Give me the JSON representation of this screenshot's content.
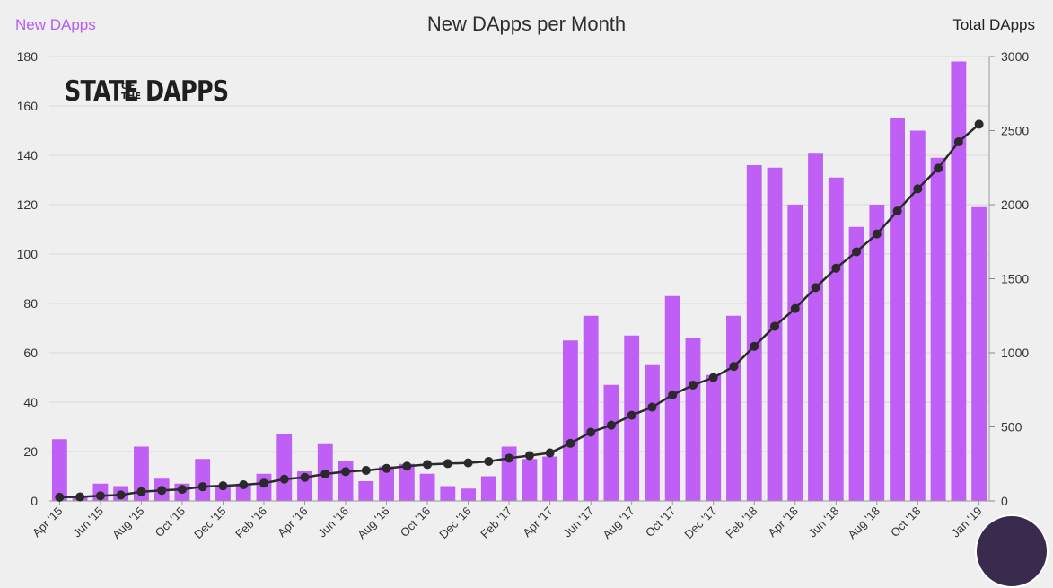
{
  "header": {
    "left_label": "New DApps",
    "title": "New DApps per Month",
    "right_label": "Total DApps"
  },
  "logo": {
    "text": "STATE OF THE DAPPS"
  },
  "colors": {
    "bar": "#bf5ff5",
    "line": "#2a2a2a",
    "left_label": "#b75cf2",
    "grid": "#d9d9d9"
  },
  "chart_data": {
    "type": "bar",
    "title": "New DApps per Month",
    "categories": [
      "Apr '15",
      "May '15",
      "Jun '15",
      "Jul '15",
      "Aug '15",
      "Sep '15",
      "Oct '15",
      "Nov '15",
      "Dec '15",
      "Jan '16",
      "Feb '16",
      "Mar '16",
      "Apr '16",
      "May '16",
      "Jun '16",
      "Jul '16",
      "Aug '16",
      "Sep '16",
      "Oct '16",
      "Nov '16",
      "Dec '16",
      "Jan '17",
      "Feb '17",
      "Mar '17",
      "Apr '17",
      "May '17",
      "Jun '17",
      "Jul '17",
      "Aug '17",
      "Sep '17",
      "Oct '17",
      "Nov '17",
      "Dec '17",
      "Jan '18",
      "Feb '18",
      "Mar '18",
      "Apr '18",
      "May '18",
      "Jun '18",
      "Jul '18",
      "Aug '18",
      "Sep '18",
      "Oct '18",
      "Nov '18",
      "Dec '18",
      "Jan '19"
    ],
    "x_tick_labels": [
      "Apr '15",
      "Jun '15",
      "Aug '15",
      "Oct '15",
      "Dec '15",
      "Feb '16",
      "Apr '16",
      "Jun '16",
      "Aug '16",
      "Oct '16",
      "Dec '16",
      "Feb '17",
      "Apr '17",
      "Jun '17",
      "Aug '17",
      "Oct '17",
      "Dec '17",
      "Feb '18",
      "Apr '18",
      "Jun '18",
      "Aug '18",
      "Oct '18",
      "Jan '19"
    ],
    "series": [
      {
        "name": "New DApps",
        "type": "bar",
        "axis": "left",
        "values": [
          25,
          2,
          7,
          6,
          22,
          9,
          7,
          17,
          6,
          7,
          11,
          27,
          12,
          23,
          16,
          8,
          14,
          15,
          11,
          6,
          5,
          10,
          22,
          17,
          18,
          65,
          75,
          47,
          67,
          55,
          83,
          66,
          51,
          75,
          136,
          135,
          120,
          141,
          131,
          111,
          120,
          155,
          150,
          139,
          178,
          119
        ]
      },
      {
        "name": "Total DApps",
        "type": "line",
        "axis": "right",
        "values": [
          25,
          27,
          35,
          40,
          62,
          71,
          78,
          96,
          102,
          109,
          120,
          147,
          159,
          182,
          198,
          206,
          220,
          235,
          246,
          252,
          257,
          267,
          289,
          306,
          324,
          389,
          464,
          511,
          578,
          633,
          716,
          782,
          833,
          908,
          1044,
          1179,
          1299,
          1440,
          1571,
          1682,
          1802,
          1957,
          2107,
          2246,
          2424,
          2543
        ]
      }
    ],
    "ylabel": "New DApps",
    "y2label": "Total DApps",
    "ylim": [
      0,
      180
    ],
    "y_ticks": [
      0,
      20,
      40,
      60,
      80,
      100,
      120,
      140,
      160,
      180
    ],
    "y2lim": [
      0,
      3000
    ],
    "y2_ticks": [
      0,
      500,
      1000,
      1500,
      2000,
      2500,
      3000
    ],
    "grid": true
  }
}
